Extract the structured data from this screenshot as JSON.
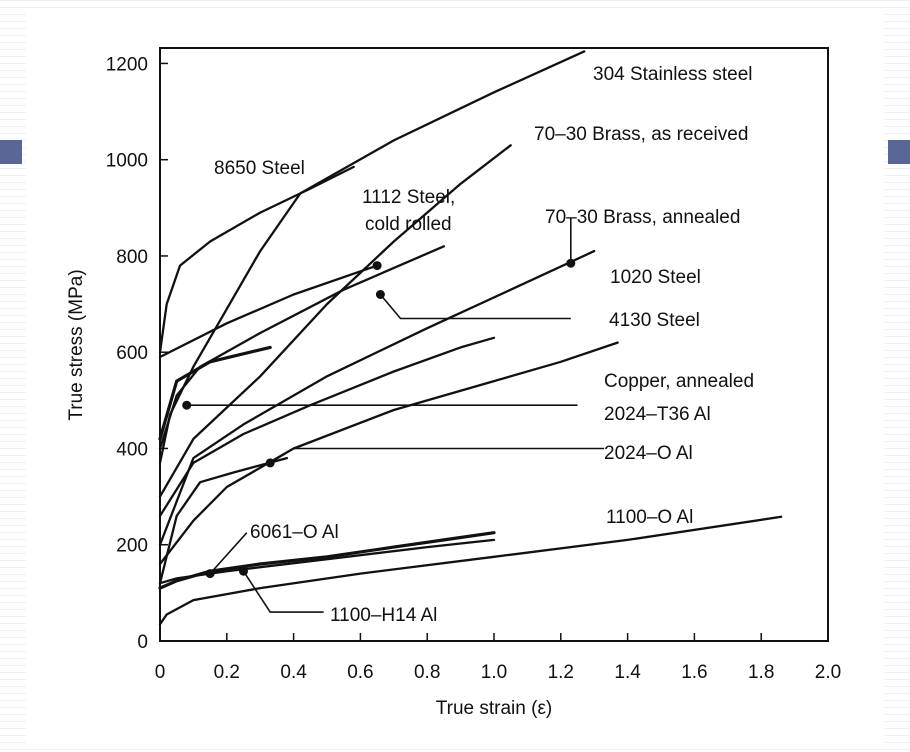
{
  "theme": {
    "slide_accent": "#5a6796",
    "ink": "#111111"
  },
  "chart_data": {
    "type": "line",
    "title": "",
    "xlabel": "True strain (ε)",
    "ylabel": "True stress (MPa)",
    "xlim": [
      0,
      2.0
    ],
    "ylim": [
      0,
      1250
    ],
    "x_ticks": [
      "0",
      "0.2",
      "0.4",
      "0.6",
      "0.8",
      "1.0",
      "1.2",
      "1.4",
      "1.6",
      "1.8",
      "2.0"
    ],
    "y_ticks": [
      "0",
      "200",
      "400",
      "600",
      "800",
      "1000",
      "1200"
    ],
    "grid": false,
    "series": [
      {
        "name": "304 Stainless steel",
        "points": [
          [
            0,
            370
          ],
          [
            0.03,
            470
          ],
          [
            0.1,
            570
          ],
          [
            0.2,
            690
          ],
          [
            0.3,
            810
          ],
          [
            0.42,
            930
          ],
          [
            0.7,
            1040
          ],
          [
            1.0,
            1140
          ],
          [
            1.27,
            1225
          ]
        ]
      },
      {
        "name": "8650 Steel",
        "points": [
          [
            0,
            600
          ],
          [
            0.02,
            700
          ],
          [
            0.06,
            780
          ],
          [
            0.15,
            830
          ],
          [
            0.3,
            890
          ],
          [
            0.45,
            940
          ],
          [
            0.58,
            985
          ]
        ]
      },
      {
        "name": "70-30 Brass, as received",
        "points": [
          [
            0,
            300
          ],
          [
            0.1,
            420
          ],
          [
            0.3,
            550
          ],
          [
            0.5,
            700
          ],
          [
            0.7,
            830
          ],
          [
            0.9,
            950
          ],
          [
            1.05,
            1030
          ]
        ]
      },
      {
        "name": "1112 Steel, cold rolled",
        "points": [
          [
            0,
            590
          ],
          [
            0.2,
            660
          ],
          [
            0.4,
            720
          ],
          [
            0.65,
            780
          ]
        ]
      },
      {
        "name": "1020 Steel",
        "points": [
          [
            0,
            400
          ],
          [
            0.05,
            510
          ],
          [
            0.12,
            570
          ],
          [
            0.3,
            640
          ],
          [
            0.55,
            730
          ],
          [
            0.85,
            820
          ]
        ]
      },
      {
        "name": "70-30 Brass, annealed",
        "points": [
          [
            0,
            200
          ],
          [
            0.1,
            380
          ],
          [
            0.25,
            450
          ],
          [
            0.5,
            550
          ],
          [
            0.8,
            650
          ],
          [
            1.05,
            730
          ],
          [
            1.3,
            810
          ]
        ]
      },
      {
        "name": "4130 Steel",
        "points": [
          [
            0,
            420
          ],
          [
            0.05,
            540
          ],
          [
            0.15,
            580
          ],
          [
            0.33,
            610
          ]
        ]
      },
      {
        "name": "Copper, annealed",
        "points": [
          [
            0,
            160
          ],
          [
            0.1,
            250
          ],
          [
            0.2,
            320
          ],
          [
            0.4,
            400
          ],
          [
            0.7,
            480
          ],
          [
            1.0,
            540
          ],
          [
            1.2,
            580
          ],
          [
            1.37,
            620
          ]
        ]
      },
      {
        "name": "2024-T36 Al",
        "points": [
          [
            0,
            260
          ],
          [
            0.1,
            370
          ],
          [
            0.25,
            430
          ],
          [
            0.45,
            490
          ],
          [
            0.7,
            560
          ],
          [
            0.9,
            610
          ],
          [
            1.0,
            630
          ]
        ]
      },
      {
        "name": "2024-O Al",
        "points": [
          [
            0,
            120
          ],
          [
            0.05,
            260
          ],
          [
            0.12,
            330
          ],
          [
            0.22,
            350
          ],
          [
            0.38,
            380
          ]
        ]
      },
      {
        "name": "6061-O Al",
        "points": [
          [
            0,
            110
          ],
          [
            0.05,
            125
          ],
          [
            0.15,
            145
          ],
          [
            0.3,
            160
          ],
          [
            0.5,
            175
          ],
          [
            0.7,
            195
          ],
          [
            0.9,
            215
          ],
          [
            1.0,
            225
          ]
        ]
      },
      {
        "name": "1100-H14 Al",
        "points": [
          [
            0,
            120
          ],
          [
            0.05,
            130
          ],
          [
            0.2,
            145
          ],
          [
            0.5,
            170
          ],
          [
            0.8,
            195
          ],
          [
            1.0,
            210
          ]
        ]
      },
      {
        "name": "1100-O Al",
        "points": [
          [
            0,
            35
          ],
          [
            0.02,
            55
          ],
          [
            0.1,
            85
          ],
          [
            0.3,
            110
          ],
          [
            0.6,
            140
          ],
          [
            1.0,
            175
          ],
          [
            1.4,
            210
          ],
          [
            1.86,
            258
          ]
        ]
      }
    ],
    "markers": [
      {
        "series": "1112 Steel, cold rolled",
        "x": 0.65,
        "y": 780
      },
      {
        "series": "4130 Steel",
        "x": 0.66,
        "y": 720
      },
      {
        "series": "70-30 Brass, annealed",
        "x": 1.23,
        "y": 785
      },
      {
        "series": "2024-T36 Al",
        "x": 0.08,
        "y": 490
      },
      {
        "series": "2024-O Al",
        "x": 0.33,
        "y": 370
      },
      {
        "series": "6061-O Al",
        "x": 0.15,
        "y": 140
      },
      {
        "series": "1100-H14 Al",
        "x": 0.25,
        "y": 145
      }
    ],
    "annotations": [
      {
        "text": "304 Stainless steel",
        "anchor": "end-of-curve"
      },
      {
        "text": "70–30 Brass, as received",
        "anchor": "end-of-curve"
      },
      {
        "text": "8650 Steel",
        "anchor": "above-curve"
      },
      {
        "text": "1112 Steel,",
        "anchor": "above-marker"
      },
      {
        "text": "cold rolled",
        "anchor": "above-marker"
      },
      {
        "text": "70–30 Brass, annealed",
        "anchor": "leader"
      },
      {
        "text": "1020 Steel",
        "anchor": "end-of-curve"
      },
      {
        "text": "4130 Steel",
        "anchor": "leader"
      },
      {
        "text": "Copper, annealed",
        "anchor": "end-of-curve"
      },
      {
        "text": "2024–T36 Al",
        "anchor": "leader"
      },
      {
        "text": "2024–O Al",
        "anchor": "leader"
      },
      {
        "text": "6061–O Al",
        "anchor": "leader"
      },
      {
        "text": "1100–O Al",
        "anchor": "end-of-curve"
      },
      {
        "text": "1100–H14 Al",
        "anchor": "leader"
      }
    ]
  }
}
